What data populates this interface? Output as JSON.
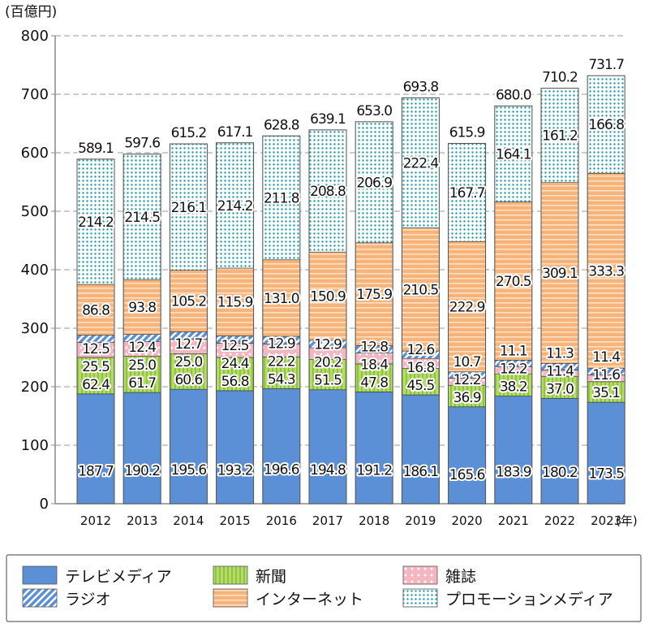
{
  "chart_data": {
    "type": "bar",
    "stacked": true,
    "ylabel": "(百億円)",
    "xlabel": "(年)",
    "ylim": [
      0,
      800
    ],
    "yticks": [
      0,
      100,
      200,
      300,
      400,
      500,
      600,
      700,
      800
    ],
    "grid": true,
    "legend_position": "bottom",
    "categories": [
      "2012",
      "2013",
      "2014",
      "2015",
      "2016",
      "2017",
      "2018",
      "2019",
      "2020",
      "2021",
      "2022",
      "2023"
    ],
    "totals": [
      "589.1",
      "597.6",
      "615.2",
      "617.1",
      "628.8",
      "639.1",
      "653.0",
      "693.8",
      "615.9",
      "680.0",
      "710.2",
      "731.7"
    ],
    "series": [
      {
        "name": "テレビメディア",
        "color": "#5b8fd6",
        "pattern": "solid",
        "values": [
          187.7,
          190.2,
          195.6,
          193.2,
          196.6,
          194.8,
          191.2,
          186.1,
          165.6,
          183.9,
          180.2,
          173.5
        ]
      },
      {
        "name": "新聞",
        "color": "#a9d65a",
        "pattern": "vertical-stripes",
        "values": [
          62.4,
          61.7,
          60.6,
          56.8,
          54.3,
          51.5,
          47.8,
          45.5,
          36.9,
          38.2,
          37.0,
          35.1
        ]
      },
      {
        "name": "雑誌",
        "color": "#f4b6c0",
        "pattern": "dots",
        "values": [
          25.5,
          25.0,
          25.0,
          24.4,
          22.2,
          20.2,
          18.4,
          16.8,
          12.2,
          12.2,
          11.4,
          11.6
        ]
      },
      {
        "name": "ラジオ",
        "color": "#5b8fd6",
        "pattern": "diagonal-hatch",
        "values": [
          12.5,
          12.4,
          12.7,
          12.5,
          12.9,
          12.9,
          12.8,
          12.6,
          10.7,
          11.1,
          11.3,
          11.4
        ]
      },
      {
        "name": "インターネット",
        "color": "#f7bf8c",
        "pattern": "horizontal-stripes",
        "values": [
          86.8,
          93.8,
          105.2,
          115.9,
          131.0,
          150.9,
          175.9,
          210.5,
          222.9,
          270.5,
          309.1,
          333.3
        ]
      },
      {
        "name": "プロモーションメディア",
        "color": "#2aa0b0",
        "pattern": "teal-dots",
        "values": [
          214.2,
          214.5,
          216.1,
          214.2,
          211.8,
          208.8,
          206.9,
          222.4,
          167.7,
          164.1,
          161.2,
          166.8
        ]
      }
    ],
    "legend_order": [
      0,
      1,
      2,
      3,
      4,
      5
    ]
  }
}
